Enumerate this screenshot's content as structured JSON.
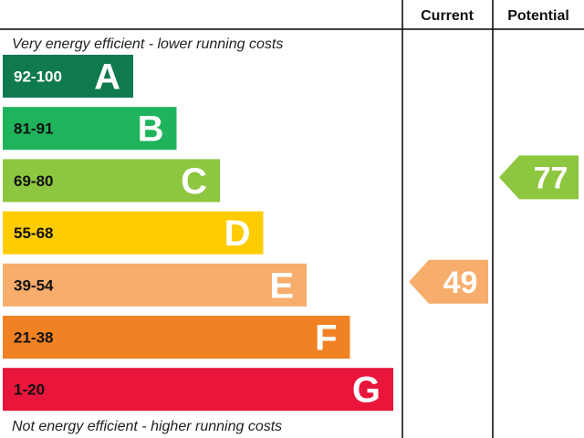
{
  "headers": {
    "current": "Current",
    "potential": "Potential"
  },
  "notes": {
    "top": "Very energy efficient - lower running costs",
    "bottom": "Not energy efficient - higher running costs"
  },
  "chart_data": {
    "type": "bar",
    "title": "",
    "categories": [
      "A",
      "B",
      "C",
      "D",
      "E",
      "F",
      "G"
    ],
    "bands": [
      {
        "letter": "A",
        "range": "92-100",
        "color": "#0f7a4d",
        "range_color": "#ffffff"
      },
      {
        "letter": "B",
        "range": "81-91",
        "color": "#1fb35c",
        "range_color": "#111111"
      },
      {
        "letter": "C",
        "range": "69-80",
        "color": "#8dc63f",
        "range_color": "#111111"
      },
      {
        "letter": "D",
        "range": "55-68",
        "color": "#ffcc00",
        "range_color": "#111111"
      },
      {
        "letter": "E",
        "range": "39-54",
        "color": "#f7ad6b",
        "range_color": "#111111"
      },
      {
        "letter": "F",
        "range": "21-38",
        "color": "#f08223",
        "range_color": "#111111"
      },
      {
        "letter": "G",
        "range": "1-20",
        "color": "#e9153b",
        "range_color": "#111111"
      }
    ],
    "ratings": {
      "current": {
        "value": 49,
        "band": "E",
        "color": "#f7ad6b"
      },
      "potential": {
        "value": 77,
        "band": "C",
        "color": "#8dc63f"
      }
    }
  }
}
